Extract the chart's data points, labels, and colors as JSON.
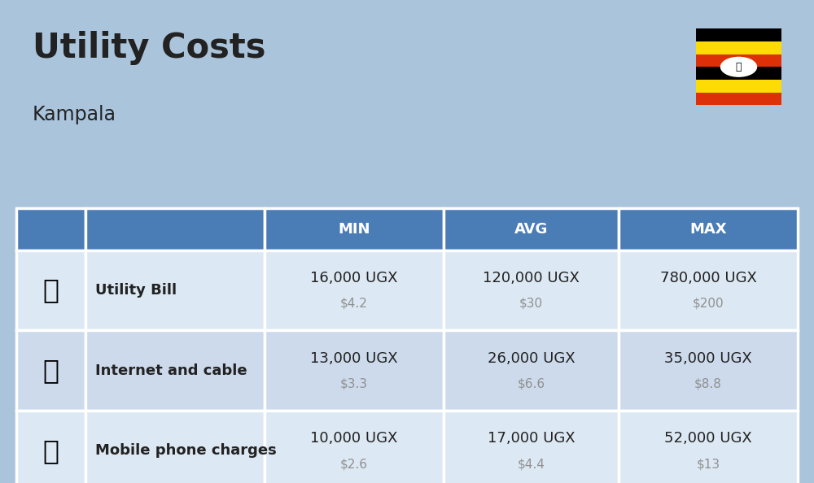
{
  "title": "Utility Costs",
  "subtitle": "Kampala",
  "background_color": "#aac4dc",
  "header_bg_color": "#4a7db5",
  "header_text_color": "#ffffff",
  "row_bg_color_odd": "#dce8f3",
  "row_bg_color_even": "#ccdaec",
  "table_border_color": "#ffffff",
  "rows": [
    {
      "label": "Utility Bill",
      "min_ugx": "16,000 UGX",
      "min_usd": "$4.2",
      "avg_ugx": "120,000 UGX",
      "avg_usd": "$30",
      "max_ugx": "780,000 UGX",
      "max_usd": "$200"
    },
    {
      "label": "Internet and cable",
      "min_ugx": "13,000 UGX",
      "min_usd": "$3.3",
      "avg_ugx": "26,000 UGX",
      "avg_usd": "$6.6",
      "max_ugx": "35,000 UGX",
      "max_usd": "$8.8"
    },
    {
      "label": "Mobile phone charges",
      "min_ugx": "10,000 UGX",
      "min_usd": "$2.6",
      "avg_ugx": "17,000 UGX",
      "avg_usd": "$4.4",
      "max_ugx": "52,000 UGX",
      "max_usd": "$13"
    }
  ],
  "flag_stripe_colors": [
    "#000000",
    "#fcdc04",
    "#de3008",
    "#000000",
    "#fcdc04",
    "#de3008"
  ],
  "title_fontsize": 30,
  "subtitle_fontsize": 17,
  "header_fontsize": 13,
  "label_fontsize": 13,
  "value_fontsize": 13,
  "usd_fontsize": 11,
  "text_dark": "#222222",
  "text_gray": "#909090"
}
